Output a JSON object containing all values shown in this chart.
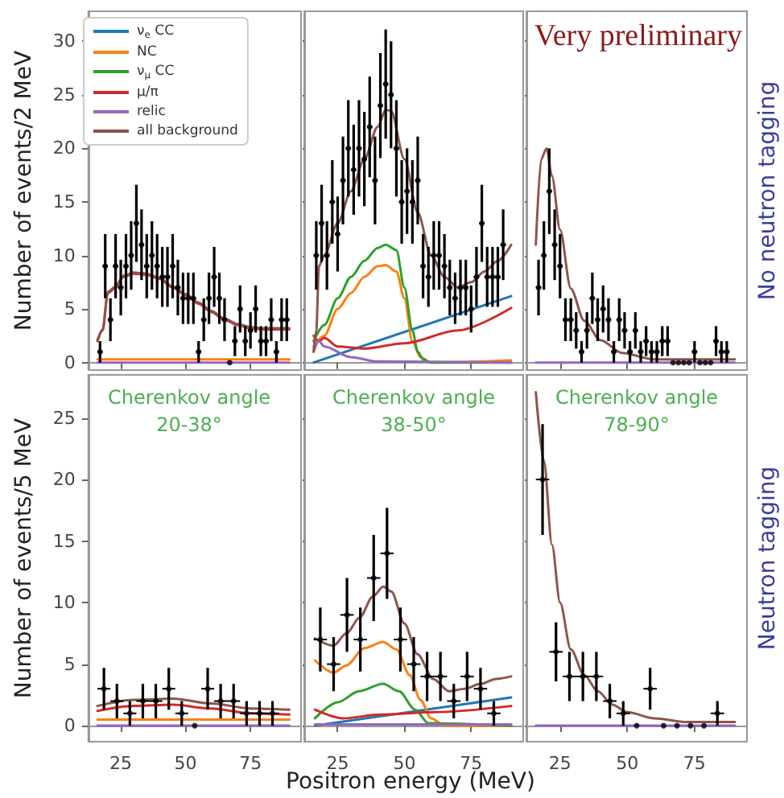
{
  "chart_data": [
    {
      "type": "scatter",
      "xlim": [
        12.5,
        94.5
      ],
      "ylim": [
        -0.7,
        32.8
      ],
      "xticks": [
        25,
        50,
        75
      ],
      "yticks": [
        0,
        5,
        10,
        15,
        20,
        25,
        30
      ],
      "tick_labels": "y",
      "ylabel": "Number of events/2 MeV",
      "legend": "top left",
      "series": [
        {
          "type": "scatter",
          "color": "#000000",
          "marker": "circle",
          "x": [
            17,
            19,
            21,
            23,
            25,
            27,
            29,
            31,
            33,
            35,
            37,
            39,
            41,
            43,
            45,
            47,
            49,
            51,
            53,
            55,
            57,
            59,
            61,
            63,
            65,
            67,
            69,
            71,
            73,
            75,
            77,
            79,
            81,
            83,
            85,
            87,
            89
          ],
          "values": [
            1,
            9,
            4,
            9,
            7,
            9,
            10,
            13,
            11,
            9,
            10,
            9,
            8,
            8,
            9,
            7,
            6,
            6,
            6,
            1,
            4,
            6,
            8,
            6,
            4,
            0,
            2,
            5,
            2,
            3,
            5,
            2,
            2,
            4,
            1,
            4,
            4
          ],
          "errors": [
            1,
            3,
            2,
            3,
            2.6,
            3,
            3.2,
            3.6,
            3.3,
            3,
            3.2,
            3,
            2.8,
            2.8,
            3,
            2.6,
            2.4,
            2.4,
            2.4,
            1,
            2,
            2.4,
            2.8,
            2.4,
            2,
            null,
            1.4,
            2.2,
            1.4,
            1.7,
            2.2,
            1.4,
            1.4,
            2,
            1,
            2,
            2
          ],
          "xerrors": [
            1,
            1,
            1,
            1,
            1,
            1,
            1,
            1,
            1,
            1,
            1,
            1,
            1,
            1,
            1,
            1,
            1,
            1,
            1,
            1,
            1,
            1,
            1,
            1,
            1,
            null,
            1,
            1,
            1,
            1,
            1,
            1,
            1,
            1,
            1,
            1,
            1
          ]
        },
        {
          "type": "line",
          "name": "ν$_{e}$ CC",
          "color": "#1f77b4"
        },
        {
          "type": "line",
          "name": "NC",
          "color": "#ff7f0e",
          "x": [
            16,
            90
          ],
          "values": [
            0.3,
            0.3
          ]
        },
        {
          "type": "line",
          "name": "ν$_{μ}$ CC",
          "color": "#2ca02c"
        },
        {
          "type": "line",
          "name": "μ/π",
          "color": "#d62728",
          "x": [
            16,
            18,
            20,
            23,
            26,
            30,
            35,
            40,
            45,
            50,
            55,
            60,
            65,
            70,
            75,
            80,
            90
          ],
          "values": [
            2,
            3,
            6.5,
            7,
            8,
            8.3,
            8.2,
            7.8,
            7,
            6.3,
            5.5,
            4.7,
            4,
            3.5,
            3.2,
            3.1,
            3.1
          ]
        },
        {
          "type": "line",
          "name": "relic",
          "color": "#9467bd",
          "x": [
            16,
            90
          ],
          "values": [
            0,
            0
          ]
        },
        {
          "type": "line",
          "name": "all background",
          "color": "#8c564b",
          "x": [
            16,
            18,
            20,
            23,
            26,
            30,
            35,
            40,
            45,
            50,
            55,
            60,
            65,
            70,
            75,
            80,
            90
          ],
          "values": [
            2.1,
            3.1,
            6.6,
            7.1,
            8.1,
            8.4,
            8.3,
            7.9,
            7.1,
            6.4,
            5.6,
            4.8,
            4.1,
            3.6,
            3.3,
            3.2,
            3.2
          ]
        }
      ]
    },
    {
      "type": "scatter",
      "xlim": [
        12.5,
        94.5
      ],
      "ylim": [
        -0.7,
        32.8
      ],
      "xticks": [
        25,
        50,
        75
      ],
      "yticks": [
        0,
        5,
        10,
        15,
        20,
        25,
        30
      ],
      "tick_labels": false,
      "series": [
        {
          "type": "scatter",
          "color": "#000000",
          "marker": "circle",
          "x": [
            17,
            19,
            21,
            23,
            25,
            27,
            29,
            31,
            33,
            35,
            37,
            39,
            41,
            43,
            45,
            47,
            49,
            51,
            53,
            55,
            57,
            59,
            61,
            63,
            65,
            67,
            69,
            71,
            73,
            75,
            77,
            79,
            81,
            83,
            85,
            87
          ],
          "values": [
            10,
            13,
            10,
            15,
            12,
            17,
            20,
            18,
            20,
            19,
            22,
            17,
            24,
            26,
            25,
            20,
            15,
            16,
            15,
            17,
            9,
            8,
            10,
            10,
            9,
            7,
            6,
            7,
            7,
            5,
            8,
            13,
            8,
            8,
            8,
            11
          ],
          "errors": [
            3.2,
            3.6,
            3.2,
            3.9,
            3.5,
            4.1,
            4.5,
            4.2,
            4.5,
            4.4,
            4.7,
            4.1,
            4.9,
            5.1,
            5,
            4.5,
            3.9,
            4,
            3.9,
            4.1,
            3,
            2.8,
            3.2,
            3.2,
            3,
            2.6,
            2.4,
            2.6,
            2.6,
            2.2,
            2.8,
            3.6,
            2.8,
            2.8,
            2.8,
            3.3
          ],
          "xerrors": [
            1,
            1,
            1,
            1,
            1,
            1,
            1,
            1,
            1,
            1,
            1,
            1,
            1,
            1,
            1,
            1,
            1,
            1,
            1,
            1,
            1,
            1,
            1,
            1,
            1,
            1,
            1,
            1,
            1,
            1,
            1,
            1,
            1,
            1,
            1,
            1
          ]
        },
        {
          "type": "line",
          "color": "#1f77b4",
          "x": [
            16,
            90
          ],
          "values": [
            0,
            6.2
          ]
        },
        {
          "type": "line",
          "color": "#ff7f0e",
          "x": [
            16,
            20,
            25,
            30,
            35,
            40,
            43,
            47,
            50,
            53,
            56,
            60,
            90
          ],
          "values": [
            1.5,
            2.5,
            5,
            6.5,
            8,
            9,
            9.1,
            8.5,
            6,
            2,
            0.5,
            0,
            0.2
          ]
        },
        {
          "type": "line",
          "color": "#2ca02c",
          "x": [
            16,
            20,
            25,
            30,
            35,
            40,
            43,
            47,
            50,
            53,
            55,
            57,
            60,
            90
          ],
          "values": [
            2,
            3.5,
            6,
            8,
            9.5,
            10.7,
            11,
            10.5,
            7,
            3,
            1,
            0.3,
            0,
            0
          ]
        },
        {
          "type": "line",
          "color": "#d62728",
          "x": [
            16,
            18,
            20,
            25,
            35,
            50,
            70,
            90
          ],
          "values": [
            2.5,
            2,
            2.3,
            1.5,
            1.3,
            1.8,
            3,
            5.1
          ]
        },
        {
          "type": "line",
          "color": "#9467bd",
          "x": [
            16,
            18,
            20,
            30,
            40,
            90
          ],
          "values": [
            1,
            2,
            1.5,
            0.5,
            0.1,
            0
          ]
        },
        {
          "type": "line",
          "color": "#8c564b",
          "x": [
            16,
            17,
            18,
            20,
            25,
            30,
            35,
            40,
            43,
            45,
            50,
            55,
            60,
            65,
            70,
            75,
            80,
            85,
            90
          ],
          "values": [
            1,
            3,
            9,
            10,
            13,
            16,
            19,
            22,
            23.6,
            23.5,
            19,
            14,
            10,
            8,
            7,
            7.5,
            8.5,
            9.5,
            11
          ]
        }
      ]
    },
    {
      "type": "scatter",
      "xlim": [
        12.5,
        94.5
      ],
      "ylim": [
        -0.7,
        32.8
      ],
      "xticks": [
        25,
        50,
        75
      ],
      "yticks": [
        0,
        5,
        10,
        15,
        20,
        25,
        30
      ],
      "tick_labels": false,
      "y2label": "No neutron tagging",
      "annotations": [
        "Very preliminary"
      ],
      "series": [
        {
          "type": "scatter",
          "color": "#000000",
          "marker": "circle",
          "x": [
            17,
            19,
            21,
            23,
            25,
            27,
            29,
            31,
            33,
            35,
            37,
            39,
            41,
            43,
            45,
            47,
            49,
            51,
            53,
            55,
            57,
            59,
            61,
            63,
            65,
            67,
            69,
            71,
            73,
            75,
            77,
            79,
            81,
            83,
            85,
            87
          ],
          "values": [
            7,
            10,
            16,
            11,
            9,
            4,
            4,
            3,
            1,
            3,
            6,
            4,
            5,
            4,
            1,
            4,
            3,
            1,
            3,
            1,
            2,
            1,
            1,
            2,
            2,
            0,
            0,
            0,
            0,
            1,
            0,
            0,
            0,
            2,
            1,
            1
          ],
          "errors": [
            2.6,
            3.2,
            4,
            3.3,
            3,
            2,
            2,
            1.7,
            1,
            1.7,
            2.4,
            2,
            2.2,
            2,
            1,
            2,
            1.7,
            1,
            1.7,
            1,
            1.4,
            1,
            1,
            1.4,
            1.4,
            null,
            null,
            null,
            null,
            1,
            null,
            null,
            null,
            1.4,
            1,
            1
          ],
          "xerrors": [
            1,
            1,
            1,
            1,
            1,
            1,
            1,
            1,
            1,
            1,
            1,
            1,
            1,
            1,
            1,
            1,
            1,
            1,
            1,
            1,
            1,
            1,
            1,
            1,
            1,
            null,
            null,
            null,
            null,
            1,
            null,
            null,
            null,
            1,
            1,
            1
          ]
        },
        {
          "type": "line",
          "color": "#9467bd",
          "x": [
            16,
            90
          ],
          "values": [
            0,
            0
          ]
        },
        {
          "type": "line",
          "color": "#8c564b",
          "x": [
            16,
            18,
            20,
            22,
            25,
            29,
            34,
            40,
            48,
            60,
            90
          ],
          "values": [
            11,
            19,
            20,
            17.4,
            12.4,
            6.9,
            3.9,
            2.1,
            0.9,
            0.3,
            0.3
          ]
        }
      ]
    },
    {
      "type": "scatter",
      "xlim": [
        12.5,
        94.5
      ],
      "ylim": [
        -1.3,
        28.5
      ],
      "xticks": [
        25,
        50,
        75
      ],
      "yticks": [
        0,
        5,
        10,
        15,
        20,
        25
      ],
      "ylabel": "Number of events/5 MeV",
      "annotations": [
        "Cherenkov angle",
        "20-38°"
      ],
      "series": [
        {
          "type": "scatter",
          "color": "#000000",
          "marker": "circle",
          "x": [
            18.5,
            23.5,
            28.5,
            33.5,
            38.5,
            43.5,
            48.5,
            53.5,
            58.5,
            63.5,
            68.5,
            73.5,
            78.5,
            83.5
          ],
          "values": [
            3,
            2,
            1,
            2,
            2,
            3,
            1,
            0,
            3,
            2,
            2,
            1,
            1,
            1
          ],
          "errors": [
            1.7,
            1.4,
            1,
            1.4,
            1.4,
            1.7,
            1,
            null,
            1.7,
            1.4,
            1.4,
            1,
            1,
            1
          ],
          "xerrors": [
            2.5,
            2.5,
            2.5,
            2.5,
            2.5,
            2.5,
            2.5,
            null,
            2.5,
            2.5,
            2.5,
            2.5,
            2.5,
            2.5
          ]
        },
        {
          "type": "line",
          "color": "#ff7f0e",
          "x": [
            16,
            90
          ],
          "values": [
            0.5,
            0.5
          ]
        },
        {
          "type": "line",
          "color": "#d62728",
          "x": [
            16,
            30,
            45,
            60,
            75,
            90
          ],
          "values": [
            1.2,
            1.6,
            1.7,
            1.4,
            1,
            0.9
          ]
        },
        {
          "type": "line",
          "color": "#9467bd",
          "x": [
            16,
            90
          ],
          "values": [
            0,
            0
          ]
        },
        {
          "type": "line",
          "color": "#8c564b",
          "x": [
            16,
            30,
            45,
            60,
            75,
            90
          ],
          "values": [
            1.6,
            2.1,
            2.2,
            1.8,
            1.4,
            1.3
          ]
        }
      ]
    },
    {
      "type": "scatter",
      "xlim": [
        12.5,
        94.5
      ],
      "ylim": [
        -1.3,
        28.5
      ],
      "xticks": [
        25,
        50,
        75
      ],
      "yticks": [
        0,
        5,
        10,
        15,
        20,
        25
      ],
      "tick_labels": "x",
      "xlabel": "Positron energy (MeV)",
      "annotations": [
        "Cherenkov angle",
        "38-50°"
      ],
      "series": [
        {
          "type": "scatter",
          "color": "#000000",
          "marker": "circle",
          "x": [
            18.5,
            23.5,
            28.5,
            33.5,
            38.5,
            43.5,
            48.5,
            53.5,
            58.5,
            63.5,
            68.5,
            73.5,
            78.5,
            83.5
          ],
          "values": [
            7,
            5,
            9,
            7,
            12,
            14,
            7,
            5,
            4,
            4,
            2,
            4,
            3,
            1
          ],
          "errors": [
            2.6,
            2.2,
            3,
            2.6,
            3.5,
            3.7,
            2.6,
            2.2,
            2,
            2,
            1.4,
            2,
            1.7,
            1
          ],
          "xerrors": [
            2.5,
            2.5,
            2.5,
            2.5,
            2.5,
            2.5,
            2.5,
            2.5,
            2.5,
            2.5,
            2.5,
            2.5,
            2.5,
            2.5
          ]
        },
        {
          "type": "line",
          "color": "#1f77b4",
          "x": [
            16.5,
            90
          ],
          "values": [
            0,
            2.3
          ]
        },
        {
          "type": "line",
          "color": "#ff7f0e",
          "x": [
            16.5,
            23.4,
            28.3,
            35,
            42,
            47,
            52,
            56,
            60,
            65,
            90
          ],
          "values": [
            5.3,
            4.3,
            4.9,
            6.3,
            6.8,
            6.2,
            4.1,
            2.1,
            0.6,
            0,
            0
          ]
        },
        {
          "type": "line",
          "color": "#2ca02c",
          "x": [
            16.5,
            25,
            33,
            42,
            48,
            54,
            59,
            90
          ],
          "values": [
            0.6,
            1.9,
            2.8,
            3.4,
            2.8,
            1.3,
            0.2,
            0
          ]
        },
        {
          "type": "line",
          "color": "#d62728",
          "x": [
            16.5,
            27,
            41,
            61,
            90
          ],
          "values": [
            1.3,
            0.6,
            0.9,
            1.1,
            1.6
          ]
        },
        {
          "type": "line",
          "color": "#9467bd",
          "x": [
            16.5,
            90
          ],
          "values": [
            0.1,
            0.1
          ]
        },
        {
          "type": "line",
          "color": "#8c564b",
          "x": [
            16.5,
            23.4,
            28.3,
            33.3,
            38.2,
            42.1,
            45.1,
            50,
            54.9,
            60.8,
            66.7,
            72.6,
            78.5,
            84.4,
            90
          ],
          "values": [
            7.1,
            6.5,
            7.5,
            8.8,
            10.5,
            11.3,
            10.9,
            8.3,
            5.8,
            3.8,
            2.8,
            3,
            3.4,
            3.8,
            4
          ]
        }
      ]
    },
    {
      "type": "scatter",
      "xlim": [
        12.5,
        94.5
      ],
      "ylim": [
        -1.3,
        28.5
      ],
      "xticks": [
        25,
        50,
        75
      ],
      "yticks": [
        0,
        5,
        10,
        15,
        20,
        25
      ],
      "tick_labels": "x",
      "y2label": "Neutron tagging",
      "annotations": [
        "Cherenkov angle",
        "78-90°"
      ],
      "series": [
        {
          "type": "scatter",
          "color": "#000000",
          "marker": "circle",
          "x": [
            18.5,
            23.5,
            28.5,
            33.5,
            38.5,
            43.5,
            48.5,
            53.5,
            58.5,
            63.5,
            68.5,
            73.5,
            78.5,
            83.5
          ],
          "values": [
            20,
            6,
            4,
            4,
            4,
            2,
            1,
            0,
            3,
            0,
            0,
            0,
            0,
            1
          ],
          "errors": [
            4.5,
            2.4,
            2,
            2,
            2,
            1.4,
            1,
            null,
            1.7,
            null,
            null,
            null,
            null,
            1
          ],
          "xerrors": [
            2.5,
            2.5,
            2.5,
            2.5,
            2.5,
            2.5,
            2.5,
            null,
            2.5,
            null,
            null,
            null,
            null,
            2.5
          ]
        },
        {
          "type": "line",
          "color": "#9467bd",
          "x": [
            16,
            90
          ],
          "values": [
            0,
            0
          ]
        },
        {
          "type": "line",
          "color": "#8c564b",
          "x": [
            16,
            19,
            22,
            25,
            29,
            34,
            39,
            44.5,
            50,
            60,
            72,
            90
          ],
          "values": [
            27.1,
            21.5,
            14.7,
            10,
            6.2,
            4.1,
            2.8,
            1.7,
            1.1,
            0.6,
            0.3,
            0.3
          ]
        }
      ]
    }
  ]
}
